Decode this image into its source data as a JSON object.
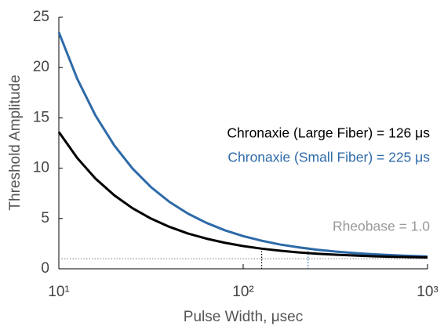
{
  "chart_data": {
    "type": "line",
    "xscale": "log",
    "x_label": "Pulse Width, μsec",
    "y_label": "Threshold Amplitude",
    "x": [
      10,
      12.6,
      15.8,
      20,
      25.1,
      31.6,
      39.8,
      50.1,
      63.1,
      79.4,
      100,
      126,
      158,
      200,
      251,
      316,
      398,
      501,
      631,
      794,
      1000
    ],
    "series": [
      {
        "name": "Small Fiber",
        "color": "#2d6aa8",
        "values": [
          23.5,
          18.86,
          15.24,
          12.25,
          9.96,
          8.12,
          6.65,
          5.49,
          4.57,
          3.83,
          3.25,
          2.79,
          2.42,
          2.13,
          1.9,
          1.71,
          1.57,
          1.45,
          1.36,
          1.28,
          1.23
        ]
      },
      {
        "name": "Large Fiber",
        "color": "#000000",
        "values": [
          13.6,
          11.0,
          8.97,
          7.3,
          6.02,
          4.99,
          4.17,
          3.51,
          3.0,
          2.59,
          2.26,
          2.0,
          1.8,
          1.63,
          1.5,
          1.4,
          1.32,
          1.25,
          1.2,
          1.16,
          1.13
        ]
      }
    ],
    "xlim": [
      10,
      1000
    ],
    "xticks": [
      {
        "value": 10,
        "label": "10¹"
      },
      {
        "value": 100,
        "label": "10²"
      },
      {
        "value": 1000,
        "label": "10³"
      }
    ],
    "ylim": [
      0,
      25
    ],
    "yticks": [
      0,
      5,
      10,
      15,
      20,
      25
    ],
    "rheobase": {
      "value": 1.0,
      "color": "#999999"
    },
    "chronaxie_lines": [
      {
        "x": 126,
        "y": 2.0,
        "color": "#000000"
      },
      {
        "x": 225,
        "y": 2.0,
        "color": "#2d6aa8"
      }
    ],
    "annotations": [
      {
        "text": "Chronaxie (Large Fiber) = 126 μs",
        "color": "#000000"
      },
      {
        "text": "Chronaxie (Small Fiber) = 225 μs",
        "color": "#2d6aa8"
      },
      {
        "text": "Rheobase = 1.0",
        "color": "#999999"
      }
    ]
  }
}
